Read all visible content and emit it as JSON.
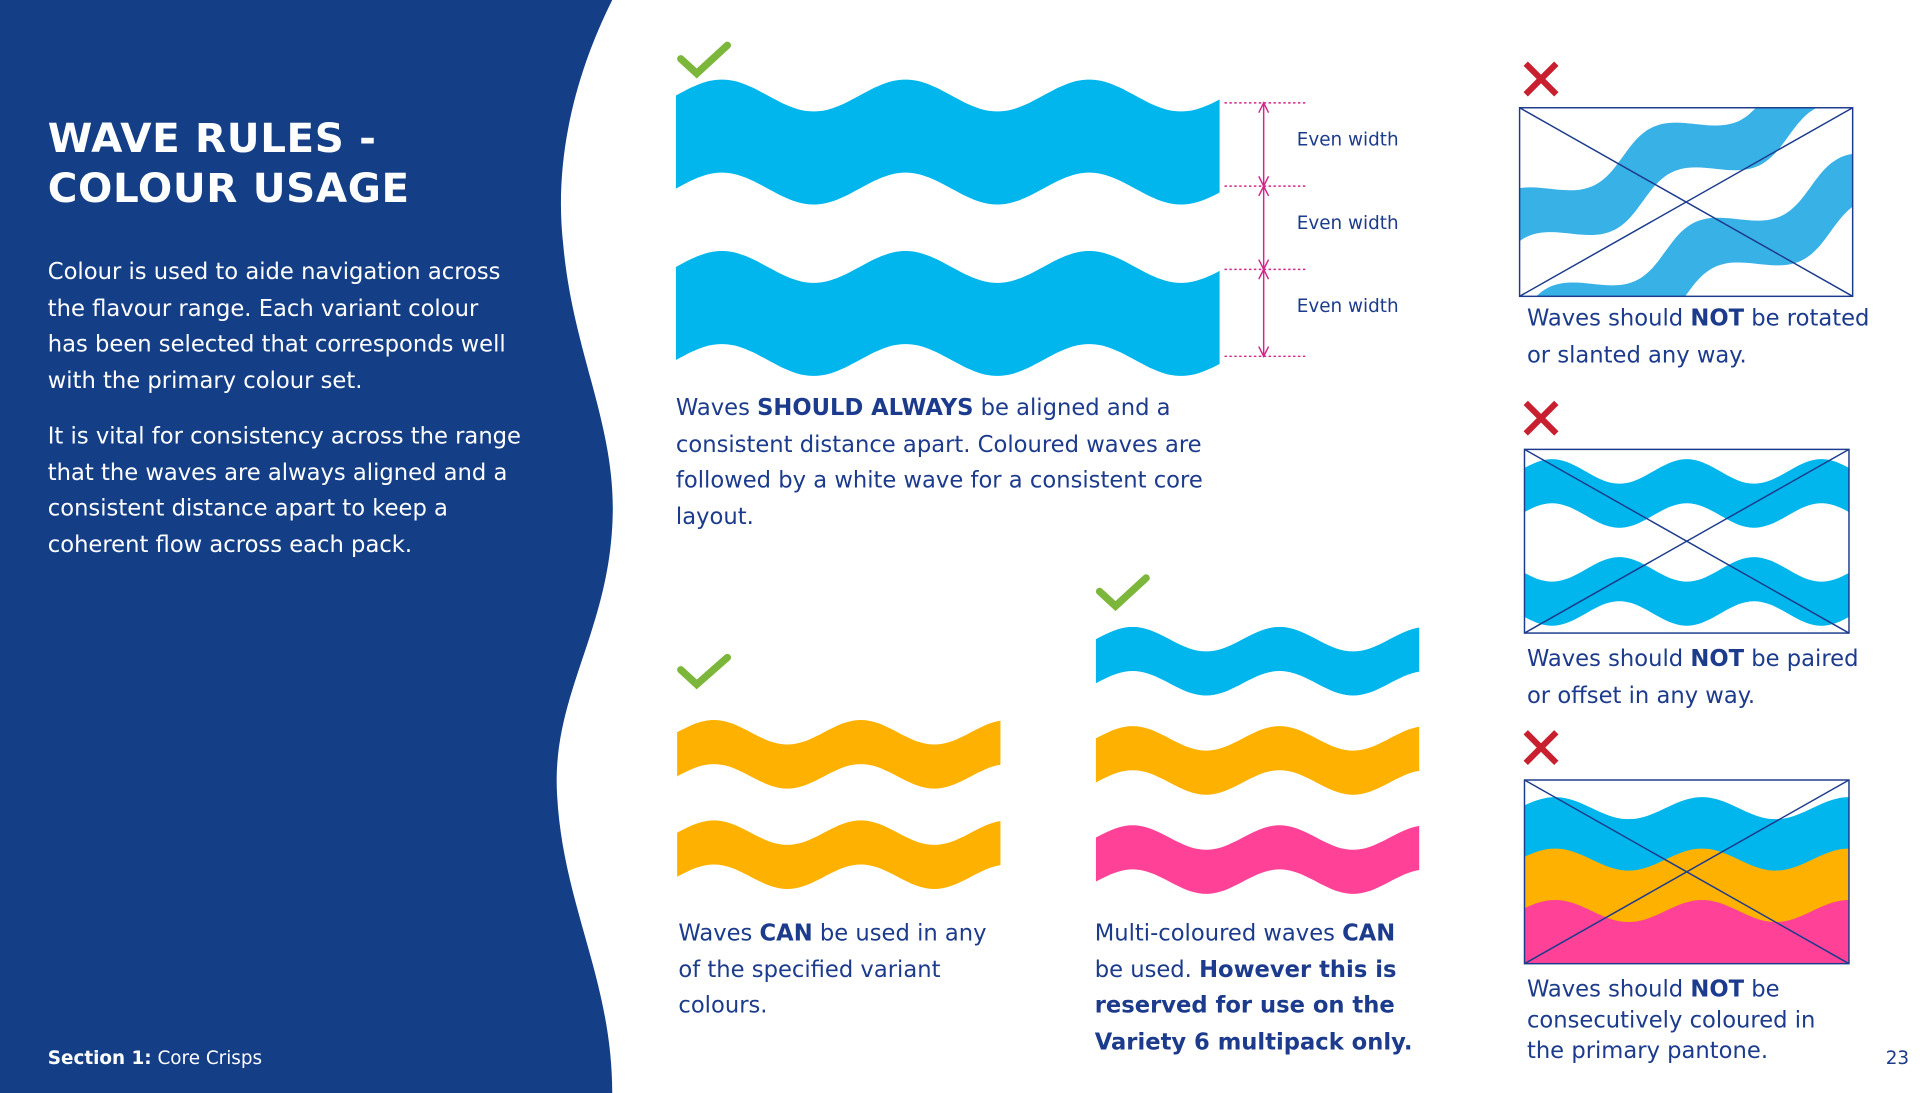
{
  "title": [
    "WAVE RULES -",
    "COLOUR USAGE"
  ],
  "intro": [
    "Colour is used to aide navigation across the flavour range. Each variant colour has been selected that corresponds well with the primary colour set.",
    "It is vital for consistency across the range that the waves are always aligned and a consistent distance apart to keep a coherent flow across each pack."
  ],
  "section": {
    "label": "Section 1:",
    "name": "Core Crisps"
  },
  "page_number": "23",
  "dimension_labels": [
    "Even width",
    "Even width",
    "Even width"
  ],
  "rules": [
    {
      "caption": [
        "Waves ",
        "SHOULD ALWAYS",
        " be aligned and a consistent distance apart. Coloured waves are followed by a white wave for a consistent core layout."
      ]
    },
    {
      "caption": [
        "Waves ",
        "CAN",
        " be used in any of the specified variant colours."
      ]
    },
    {
      "caption": [
        "Multi-coloured waves ",
        "CAN",
        " be used. ",
        "However this is reserved for use on the Variety 6 multipack only."
      ]
    },
    {
      "caption": [
        "Waves should ",
        "NOT",
        " be rotated or slanted any way."
      ]
    },
    {
      "caption": [
        "Waves should ",
        "NOT",
        " be paired or offset in any way."
      ]
    },
    {
      "caption": [
        "Waves should ",
        "NOT",
        " be consecutively coloured in the primary pantone."
      ]
    }
  ]
}
